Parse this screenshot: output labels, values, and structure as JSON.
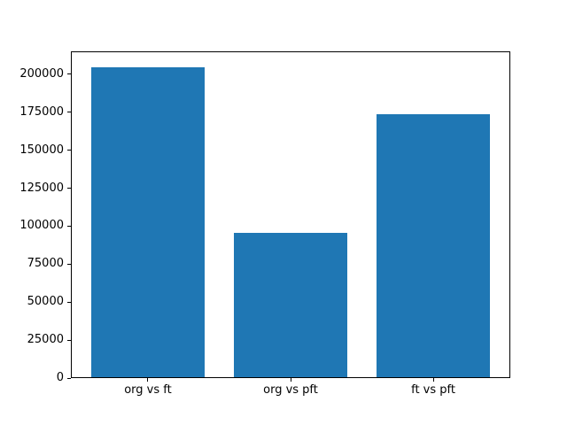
{
  "figure": {
    "background": "#ffffff"
  },
  "chart_data": {
    "type": "bar",
    "title": "",
    "xlabel": "",
    "ylabel": "",
    "categories": [
      "org vs ft",
      "org vs pft",
      "ft vs pft"
    ],
    "values": [
      204800,
      95400,
      173400
    ],
    "yticks": [
      0,
      25000,
      50000,
      75000,
      100000,
      125000,
      150000,
      175000,
      200000
    ],
    "ylim": [
      0,
      215040
    ],
    "bar_color": "#1f77b4",
    "spine_color": "#000000",
    "tick_label_color": "#000000",
    "bar_width_fraction": 0.8,
    "x_margin": 0.14,
    "grid": false,
    "legend": false
  }
}
